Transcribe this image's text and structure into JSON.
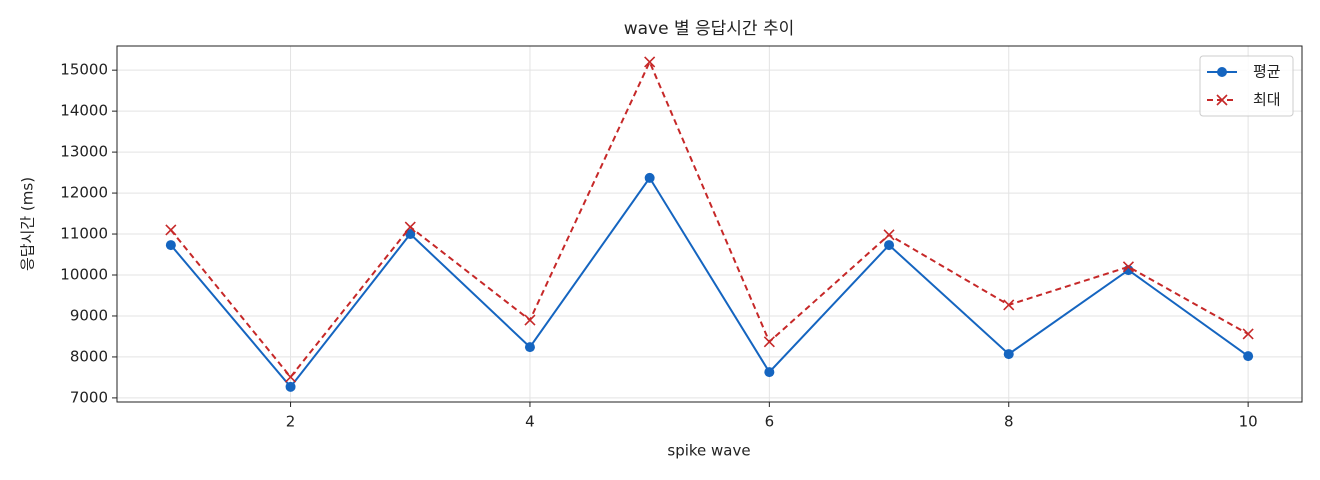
{
  "chart_data": {
    "type": "line",
    "title": "wave 별 응답시간 추이",
    "x_label": "spike wave",
    "y_label": "응답시간 (ms)",
    "x": [
      1,
      2,
      3,
      4,
      5,
      6,
      7,
      8,
      9,
      10
    ],
    "series": [
      {
        "name": "평균",
        "color": "#1565c0",
        "marker": "circle",
        "dash": false,
        "values": [
          10730,
          7270,
          11000,
          8240,
          12370,
          7630,
          10730,
          8070,
          10120,
          8020
        ]
      },
      {
        "name": "최대",
        "color": "#c62828",
        "marker": "x",
        "dash": true,
        "values": [
          11100,
          7510,
          11170,
          8900,
          15200,
          8370,
          10980,
          9270,
          10200,
          8560
        ]
      }
    ],
    "xlim": [
      0.55,
      10.45
    ],
    "xticks": [
      2,
      4,
      6,
      8,
      10
    ],
    "ylim": [
      6900,
      15590
    ],
    "yticks": [
      7000,
      8000,
      9000,
      10000,
      11000,
      12000,
      13000,
      14000,
      15000
    ],
    "grid": true,
    "legend": "upper-right"
  }
}
